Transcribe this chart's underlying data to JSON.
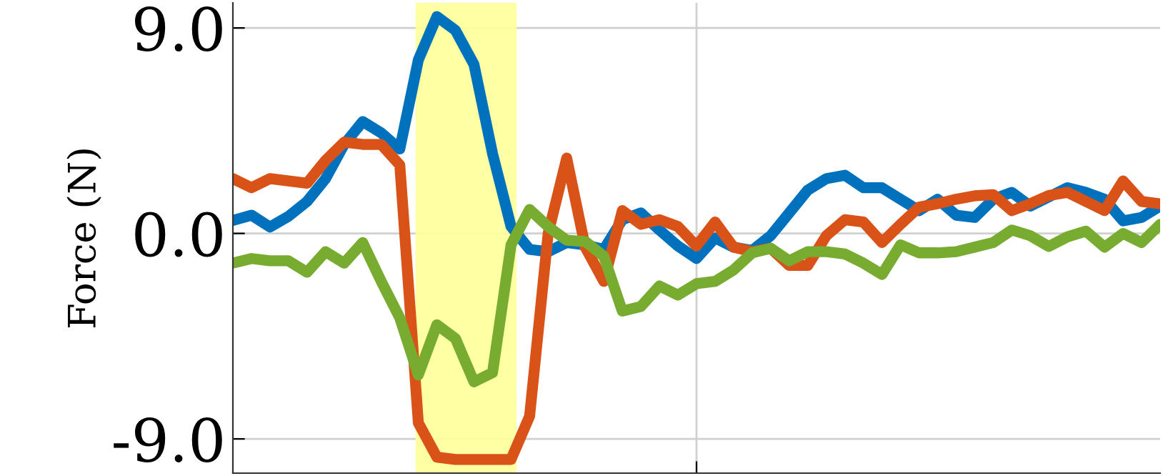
{
  "chart_data": {
    "type": "line",
    "ylabel": "Force (N)",
    "categories": [
      null,
      null,
      null,
      null,
      null,
      null,
      null,
      null,
      null,
      null,
      null,
      null,
      null,
      null,
      null,
      null,
      null,
      null,
      null,
      null,
      null,
      null,
      null,
      null,
      null,
      null,
      null,
      null,
      null,
      null,
      null,
      null,
      null,
      null,
      null,
      null,
      null,
      null,
      null,
      null,
      null,
      null,
      null,
      null,
      null,
      null,
      null,
      null,
      null,
      null,
      null
    ],
    "ylim": [
      -10.5,
      10.1
    ],
    "yticks": [
      {
        "value": 9,
        "label": "9.0"
      },
      {
        "value": 0,
        "label": "0.0"
      },
      {
        "value": -9,
        "label": "-9.0"
      }
    ],
    "tick_labels": "y",
    "grid": true,
    "line_style": "solid",
    "marker": "none",
    "series": [
      {
        "color": "#0072bd",
        "values": [
          0.57,
          0.8,
          0.28,
          0.75,
          1.4,
          2.4,
          3.9,
          4.9,
          4.4,
          3.7,
          7.6,
          9.5,
          8.9,
          7.4,
          3.5,
          0.3,
          -0.7,
          -0.8,
          -0.4,
          -0.5,
          -0.7,
          0.6,
          0.9,
          0.15,
          -0.55,
          -1.1,
          -0.2,
          -0.6,
          -0.75,
          -0.1,
          0.9,
          1.9,
          2.4,
          2.55,
          2.0,
          2.0,
          1.5,
          1.0,
          1.5,
          0.8,
          0.7,
          1.5,
          1.8,
          1.2,
          1.6,
          2.0,
          1.8,
          1.5,
          0.55,
          0.7,
          1.2
        ]
      },
      {
        "color": "#d95319",
        "values": [
          2.4,
          2.0,
          2.4,
          2.3,
          2.2,
          3.2,
          4.0,
          3.9,
          3.9,
          3.0,
          -8.3,
          -9.8,
          -9.9,
          -9.9,
          -9.9,
          -9.9,
          -8.0,
          0.0,
          3.3,
          -0.6,
          -2.1,
          1.0,
          0.4,
          0.6,
          0.3,
          -0.55,
          0.5,
          -0.6,
          -0.8,
          -0.65,
          -1.4,
          -1.4,
          -0.1,
          0.6,
          0.5,
          -0.4,
          0.4,
          1.15,
          1.3,
          1.5,
          1.65,
          1.7,
          1.0,
          1.3,
          1.66,
          1.8,
          1.4,
          1.0,
          2.3,
          1.4,
          1.3
        ]
      },
      {
        "color": "#77ac30",
        "values": [
          -1.3,
          -1.1,
          -1.2,
          -1.2,
          -1.7,
          -0.8,
          -1.3,
          -0.4,
          -2.1,
          -3.7,
          -6.2,
          -4.0,
          -4.6,
          -6.5,
          -6.1,
          -0.5,
          1.05,
          0.3,
          -0.3,
          -0.35,
          -1.0,
          -3.4,
          -3.2,
          -2.3,
          -2.7,
          -2.2,
          -2.1,
          -1.6,
          -0.85,
          -0.65,
          -1.2,
          -0.8,
          -0.8,
          -0.9,
          -1.3,
          -1.8,
          -0.5,
          -0.85,
          -0.85,
          -0.8,
          -0.6,
          -0.4,
          0.15,
          -0.1,
          -0.57,
          -0.15,
          0.1,
          -0.6,
          0.0,
          -0.4,
          0.4
        ]
      }
    ]
  }
}
